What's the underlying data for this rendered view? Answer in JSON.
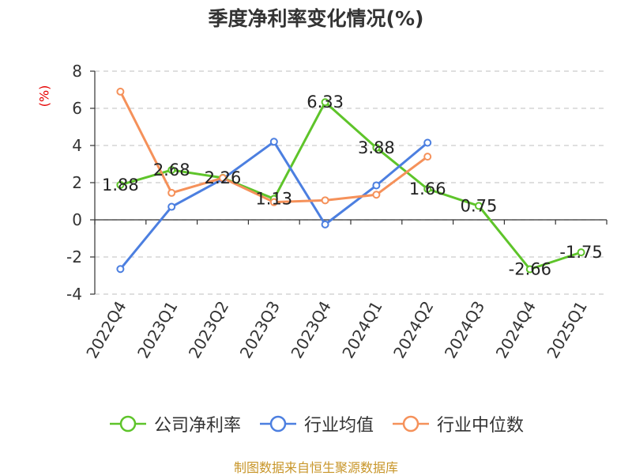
{
  "chart_data": {
    "type": "line",
    "title": "季度净利率变化情况(%)",
    "ylabel": "(%)",
    "xlabel": "",
    "categories": [
      "2022Q4",
      "2023Q1",
      "2023Q2",
      "2023Q3",
      "2023Q4",
      "2024Q1",
      "2024Q2",
      "2024Q3",
      "2024Q4",
      "2025Q1"
    ],
    "ylim": [
      -4,
      8
    ],
    "yticks": [
      -4,
      -2,
      0,
      2,
      4,
      6,
      8
    ],
    "grid": true,
    "legend_position": "bottom",
    "series": [
      {
        "name": "公司净利率",
        "color": "#5ec42a",
        "values": [
          1.88,
          2.68,
          2.26,
          1.13,
          6.33,
          3.88,
          1.66,
          0.75,
          -2.66,
          -1.75
        ],
        "labels": true
      },
      {
        "name": "行业均值",
        "color": "#4c7fe0",
        "values": [
          -2.65,
          0.7,
          2.2,
          4.2,
          -0.25,
          1.85,
          4.15,
          null,
          null,
          null
        ],
        "labels": false
      },
      {
        "name": "行业中位数",
        "color": "#f5915a",
        "values": [
          6.9,
          1.45,
          2.25,
          0.95,
          1.05,
          1.35,
          3.4,
          null,
          null,
          null
        ],
        "labels": false
      }
    ]
  },
  "source": "制图数据来自恒生聚源数据库"
}
